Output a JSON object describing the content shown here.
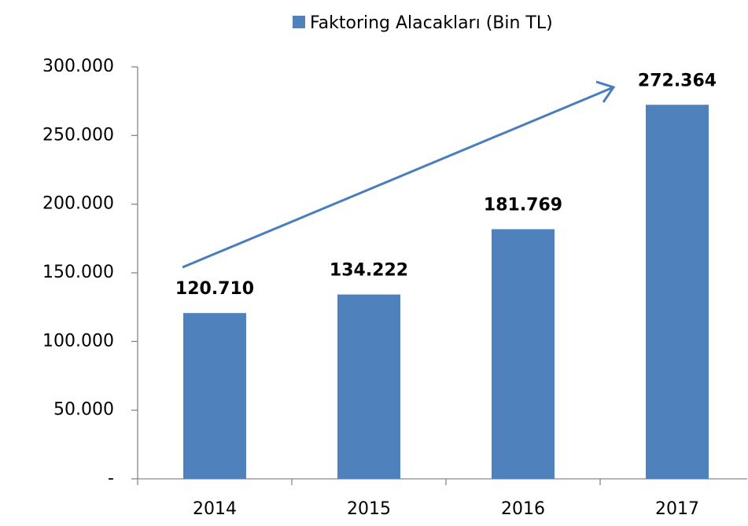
{
  "chart_data": {
    "type": "bar",
    "categories": [
      "2014",
      "2015",
      "2016",
      "2017"
    ],
    "series": [
      {
        "name": "Faktoring Alacakları (Bin TL)",
        "color": "#4f81bd",
        "values": [
          120710,
          134222,
          181769,
          272364
        ],
        "value_labels": [
          "120.710",
          "134.222",
          "181.769",
          "272.364"
        ]
      }
    ],
    "ylim": [
      0,
      300000
    ],
    "yticks": [
      {
        "value": 0,
        "label": "-"
      },
      {
        "value": 50000,
        "label": "50.000"
      },
      {
        "value": 100000,
        "label": "100.000"
      },
      {
        "value": 150000,
        "label": "150.000"
      },
      {
        "value": 200000,
        "label": "200.000"
      },
      {
        "value": 250000,
        "label": "250.000"
      },
      {
        "value": 300000,
        "label": "300.000"
      }
    ],
    "grid": false,
    "legend": "top"
  }
}
